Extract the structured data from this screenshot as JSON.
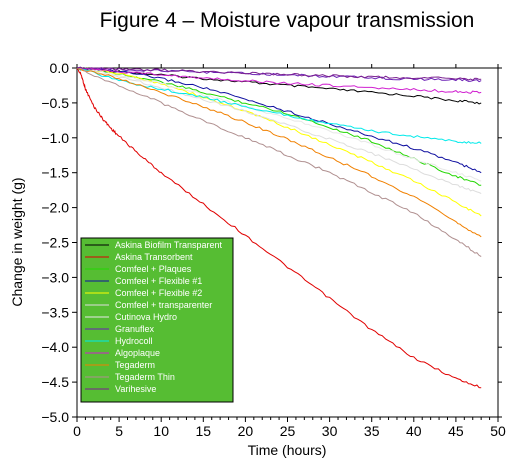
{
  "chart_data": {
    "type": "line",
    "title": "Figure 4 – Moisture vapour transmission",
    "xlabel": "Time (hours)",
    "ylabel": "Change in weight (g)",
    "xlim": [
      0,
      50
    ],
    "ylim": [
      -5.0,
      0.0
    ],
    "x_ticks": [
      0,
      5,
      10,
      15,
      20,
      25,
      30,
      35,
      40,
      45,
      50
    ],
    "x_tick_labels": [
      "0",
      "5",
      "10",
      "15",
      "20",
      "25",
      "30",
      "35",
      "40",
      "45",
      "50"
    ],
    "y_ticks": [
      0.0,
      -0.5,
      -1.0,
      -1.5,
      -2.0,
      -2.5,
      -3.0,
      -3.5,
      -4.0,
      -4.5,
      -5.0
    ],
    "y_tick_labels": [
      "0.0",
      "−0.5",
      "−1.0",
      "−1.5",
      "−2.0",
      "−2.5",
      "−3.0",
      "−3.5",
      "−4.0",
      "−4.5",
      "−5.0"
    ],
    "grid": false,
    "legend": {
      "position": "bottom-left",
      "background": "#56bd33"
    },
    "series": [
      {
        "name": "Askina Biofilm Transparent",
        "color": "#000000",
        "x": [
          0,
          5,
          10,
          15,
          20,
          25,
          30,
          35,
          40,
          45,
          48
        ],
        "y": [
          0,
          -0.05,
          -0.1,
          -0.15,
          -0.2,
          -0.25,
          -0.3,
          -0.35,
          -0.4,
          -0.47,
          -0.5
        ]
      },
      {
        "name": "Askina Transorbent",
        "color": "#e00000",
        "x": [
          0,
          0.5,
          1,
          2,
          3,
          4,
          5,
          7.5,
          10,
          15,
          20,
          25,
          30,
          35,
          40,
          45,
          48
        ],
        "y": [
          0,
          -0.1,
          -0.3,
          -0.55,
          -0.72,
          -0.86,
          -0.98,
          -1.25,
          -1.5,
          -1.95,
          -2.4,
          -2.85,
          -3.3,
          -3.75,
          -4.15,
          -4.45,
          -4.58
        ]
      },
      {
        "name": "Comfeel + Plaques",
        "color": "#22d600",
        "x": [
          0,
          5,
          10,
          15,
          20,
          25,
          30,
          35,
          40,
          45,
          48
        ],
        "y": [
          0,
          -0.08,
          -0.2,
          -0.35,
          -0.5,
          -0.65,
          -0.85,
          -1.05,
          -1.3,
          -1.55,
          -1.68
        ]
      },
      {
        "name": "Comfeel + Flexible #1",
        "color": "#1010a0",
        "x": [
          0,
          5,
          10,
          15,
          20,
          25,
          30,
          35,
          40,
          45,
          48
        ],
        "y": [
          0,
          -0.05,
          -0.15,
          -0.28,
          -0.45,
          -0.62,
          -0.8,
          -0.98,
          -1.15,
          -1.35,
          -1.5
        ]
      },
      {
        "name": "Comfeel + Flexible #2",
        "color": "#ffff00",
        "x": [
          0,
          5,
          10,
          15,
          20,
          25,
          30,
          35,
          40,
          45,
          48
        ],
        "y": [
          0,
          -0.08,
          -0.22,
          -0.42,
          -0.62,
          -0.85,
          -1.1,
          -1.35,
          -1.62,
          -1.92,
          -2.12
        ]
      },
      {
        "name": "Comfeel + transparenter",
        "color": "#dddddd",
        "x": [
          0,
          5,
          10,
          15,
          20,
          25,
          30,
          35,
          40,
          45,
          48
        ],
        "y": [
          0,
          -0.12,
          -0.28,
          -0.45,
          -0.62,
          -0.82,
          -1.02,
          -1.22,
          -1.45,
          -1.68,
          -1.8
        ]
      },
      {
        "name": "Cutinova Hydro",
        "color": "#e8e8e8",
        "x": [
          0,
          5,
          10,
          15,
          20,
          25,
          30,
          35,
          40,
          45,
          48
        ],
        "y": [
          0,
          -0.1,
          -0.22,
          -0.38,
          -0.55,
          -0.72,
          -0.9,
          -1.1,
          -1.3,
          -1.5,
          -1.62
        ]
      },
      {
        "name": "Granuflex",
        "color": "#6a1fb5",
        "x": [
          0,
          5,
          10,
          15,
          20,
          25,
          30,
          35,
          40,
          45,
          48
        ],
        "y": [
          0,
          -0.02,
          -0.04,
          -0.06,
          -0.08,
          -0.1,
          -0.12,
          -0.14,
          -0.16,
          -0.17,
          -0.18
        ]
      },
      {
        "name": "Hydrocoll",
        "color": "#00eaea",
        "x": [
          0,
          5,
          10,
          15,
          20,
          25,
          30,
          35,
          40,
          45,
          48
        ],
        "y": [
          0,
          -0.18,
          -0.3,
          -0.42,
          -0.55,
          -0.68,
          -0.8,
          -0.9,
          -0.98,
          -1.05,
          -1.08
        ]
      },
      {
        "name": "Algoplaque",
        "color": "#d020d0",
        "x": [
          0,
          5,
          10,
          15,
          20,
          25,
          30,
          35,
          40,
          45,
          48
        ],
        "y": [
          0,
          -0.05,
          -0.1,
          -0.14,
          -0.18,
          -0.22,
          -0.25,
          -0.28,
          -0.31,
          -0.34,
          -0.35
        ]
      },
      {
        "name": "Tegaderm",
        "color": "#f08000",
        "x": [
          0,
          5,
          10,
          15,
          20,
          25,
          30,
          35,
          40,
          45,
          48
        ],
        "y": [
          0,
          -0.15,
          -0.35,
          -0.55,
          -0.78,
          -1.02,
          -1.28,
          -1.55,
          -1.85,
          -2.2,
          -2.42
        ]
      },
      {
        "name": "Tegaderm Thin",
        "color": "#b09090",
        "x": [
          0,
          5,
          10,
          15,
          20,
          25,
          30,
          35,
          40,
          45,
          48
        ],
        "y": [
          0,
          -0.25,
          -0.5,
          -0.75,
          -1.0,
          -1.25,
          -1.5,
          -1.78,
          -2.08,
          -2.45,
          -2.7
        ]
      },
      {
        "name": "Varihesive",
        "color": "#7a2090",
        "x": [
          0,
          5,
          10,
          15,
          20,
          25,
          30,
          35,
          40,
          45,
          48
        ],
        "y": [
          0,
          -0.02,
          -0.03,
          -0.05,
          -0.07,
          -0.09,
          -0.11,
          -0.13,
          -0.14,
          -0.15,
          -0.16
        ]
      }
    ]
  }
}
